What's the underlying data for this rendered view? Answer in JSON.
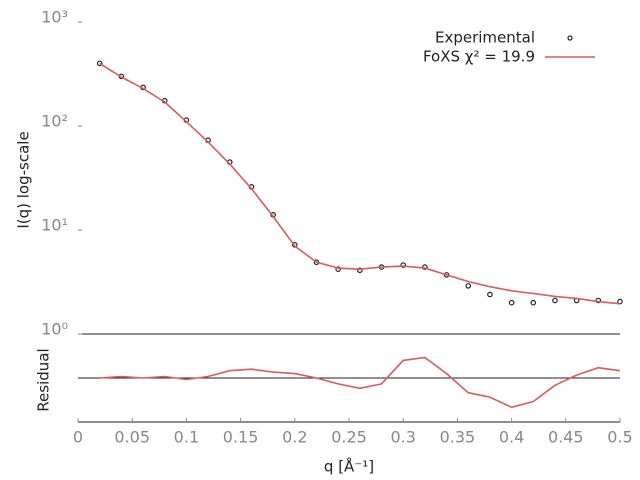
{
  "chart_data": [
    {
      "type": "line",
      "ylabel": "I(q) log-scale",
      "log_y": true,
      "xlim": [
        0,
        0.5
      ],
      "ylim": [
        1,
        1000
      ],
      "yticks": [
        {
          "value": 1,
          "label": "10⁰"
        },
        {
          "value": 10,
          "label": "10¹"
        },
        {
          "value": 100,
          "label": "10²"
        },
        {
          "value": 1000,
          "label": "10³"
        }
      ],
      "legend": "top-right",
      "x": [
        0.02,
        0.04,
        0.06,
        0.08,
        0.1,
        0.12,
        0.14,
        0.16,
        0.18,
        0.2,
        0.22,
        0.24,
        0.26,
        0.28,
        0.3,
        0.32,
        0.34,
        0.36,
        0.38,
        0.4,
        0.42,
        0.44,
        0.46,
        0.48,
        0.5
      ],
      "series": [
        {
          "name": "Experimental",
          "color": "#222222",
          "style": "points",
          "values": [
            400,
            300,
            235,
            175,
            114,
            73,
            45,
            26,
            14,
            7.2,
            4.9,
            4.2,
            4.1,
            4.4,
            4.6,
            4.4,
            3.7,
            2.9,
            2.4,
            2.0,
            2.0,
            2.1,
            2.1,
            2.1,
            2.05
          ]
        },
        {
          "name": "FoXS χ² = 19.9",
          "color": "#dc5a5a",
          "style": "line",
          "values": [
            400,
            295,
            230,
            170,
            110,
            70,
            43,
            25,
            13.5,
            7.0,
            4.9,
            4.3,
            4.2,
            4.4,
            4.5,
            4.3,
            3.7,
            3.2,
            2.85,
            2.6,
            2.45,
            2.3,
            2.2,
            2.05,
            1.95
          ]
        }
      ]
    },
    {
      "type": "line",
      "ylabel": "Residual",
      "xlabel": "q [Å⁻¹]",
      "xlim": [
        0,
        0.5
      ],
      "ylim": [
        -3,
        3
      ],
      "xticks": [
        0,
        0.05,
        0.1,
        0.15,
        0.2,
        0.25,
        0.3,
        0.35,
        0.4,
        0.45,
        0.5
      ],
      "x": [
        0.02,
        0.04,
        0.06,
        0.08,
        0.1,
        0.12,
        0.14,
        0.16,
        0.18,
        0.2,
        0.22,
        0.24,
        0.26,
        0.28,
        0.3,
        0.32,
        0.34,
        0.36,
        0.38,
        0.4,
        0.42,
        0.44,
        0.46,
        0.48,
        0.5
      ],
      "series": [
        {
          "color": "#dc5a5a",
          "style": "line",
          "values": [
            0.0,
            0.1,
            0.0,
            0.1,
            -0.1,
            0.1,
            0.5,
            0.6,
            0.4,
            0.3,
            0.0,
            -0.4,
            -0.7,
            -0.4,
            1.2,
            1.4,
            0.3,
            -1.0,
            -1.3,
            -2.0,
            -1.6,
            -0.5,
            0.2,
            0.7,
            0.5
          ]
        }
      ]
    }
  ]
}
